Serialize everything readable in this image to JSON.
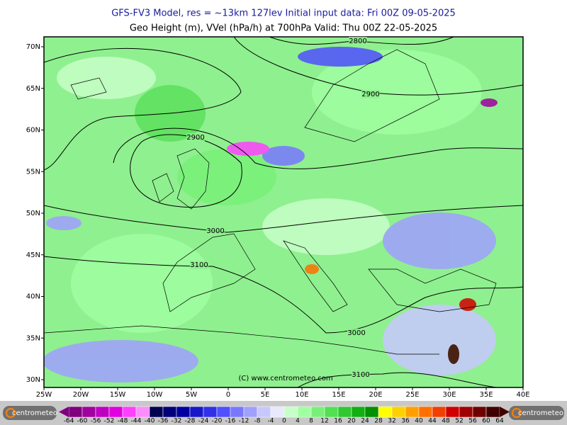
{
  "header": {
    "title_line1": "GFS-FV3 Model, res = ~13km 127lev   Initial input data: Fri 00Z 09-05-2025",
    "title_line2": "Geo Height (m), VVel (hPa/h) at 700hPa  Valid: Thu 00Z 22-05-2025"
  },
  "map": {
    "lat_labels": [
      "70N",
      "65N",
      "60N",
      "55N",
      "50N",
      "45N",
      "40N",
      "35N",
      "30N"
    ],
    "lon_labels": [
      "25W",
      "20W",
      "15W",
      "10W",
      "5W",
      "0",
      "5E",
      "10E",
      "15E",
      "20E",
      "25E",
      "30E",
      "35E",
      "40E"
    ],
    "contour_labels": [
      "2800",
      "2900",
      "2900",
      "3000",
      "3100",
      "3000",
      "3100"
    ],
    "watermark": "(C) www.centrometeo.com"
  },
  "colorbar": {
    "ticks": [
      -64,
      -60,
      -56,
      -52,
      -48,
      -44,
      -40,
      -36,
      -32,
      -28,
      -24,
      -20,
      -16,
      -12,
      -8,
      -4,
      0,
      4,
      8,
      12,
      16,
      20,
      24,
      28,
      32,
      36,
      40,
      44,
      48,
      52,
      56,
      60,
      64
    ],
    "colors": [
      "#7f007f",
      "#a000a0",
      "#c000c0",
      "#e000e0",
      "#ff40ff",
      "#ff8cff",
      "#000050",
      "#00007a",
      "#0000a0",
      "#1818c8",
      "#3030e8",
      "#5050ff",
      "#7878ff",
      "#a0a0ff",
      "#c8c8ff",
      "#e8e8ff",
      "#c8ffc8",
      "#a0ffa0",
      "#78f078",
      "#50e050",
      "#30c830",
      "#10b010",
      "#009000",
      "#ffff00",
      "#ffd000",
      "#ffa000",
      "#ff7000",
      "#f04000",
      "#d00000",
      "#a00000",
      "#700000",
      "#400000"
    ]
  },
  "logos": [
    "centrometeo",
    "centrometeo"
  ]
}
